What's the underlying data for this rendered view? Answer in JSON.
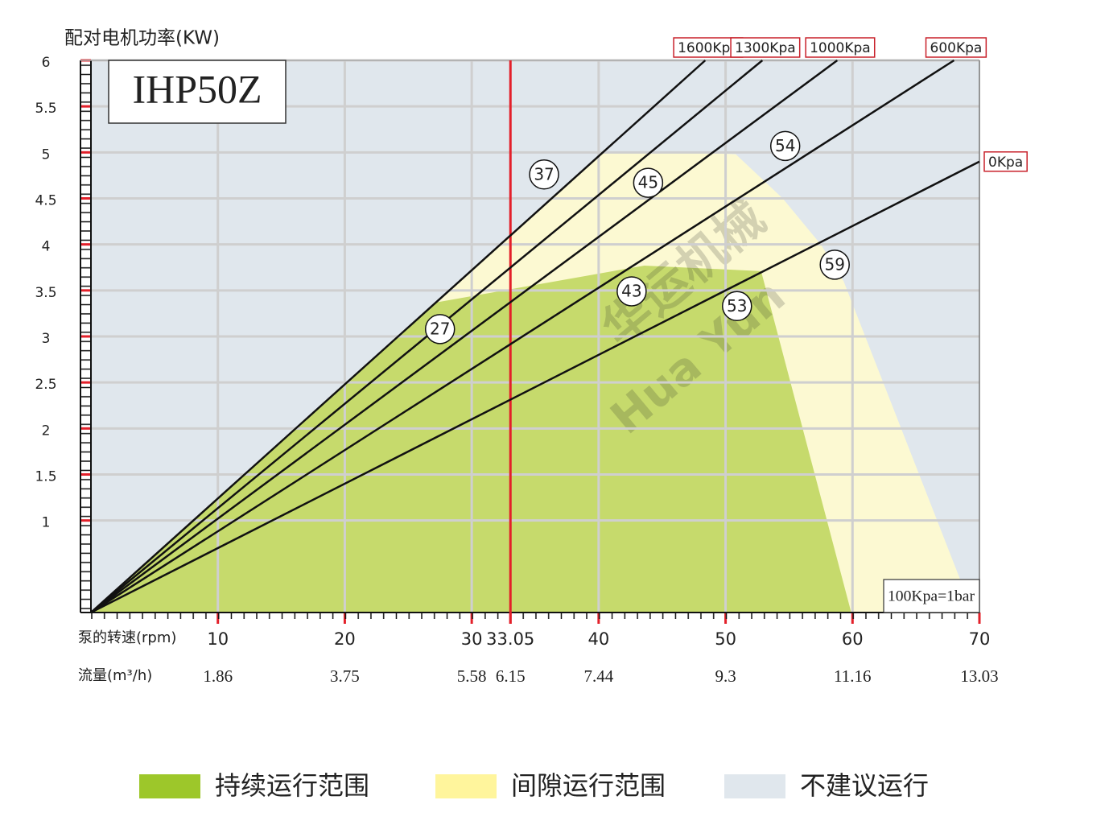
{
  "chart_data": {
    "type": "line",
    "title": "IHP50Z",
    "y_label": "配对电机功率(KW)",
    "x_label": "泵的转速(rpm)",
    "flow_label": "流量(m³/h)",
    "note": "100Kpa=1bar",
    "watermark": [
      "华运机械",
      "Hua Yun"
    ],
    "xlim": [
      0,
      70
    ],
    "ylim": [
      0,
      6
    ],
    "xticks": [
      10,
      20,
      30,
      33.05,
      40,
      50,
      60,
      70
    ],
    "flow_labels": [
      "1.86",
      "3.75",
      "5.58",
      "6.15",
      "7.44",
      "9.3",
      "11.16",
      "13.03"
    ],
    "yticks": [
      1,
      1.5,
      2,
      2.5,
      3,
      3.5,
      4,
      4.5,
      5,
      5.5,
      6
    ],
    "grid": true,
    "highlight": {
      "x": 33.05,
      "color": "#e3202a"
    },
    "series": [
      {
        "name": "1600Kpa",
        "color": "#111111",
        "x": [
          0,
          48.4
        ],
        "values": [
          0,
          6
        ]
      },
      {
        "name": "1300Kpa",
        "color": "#111111",
        "x": [
          0,
          52.9
        ],
        "values": [
          0,
          6
        ]
      },
      {
        "name": "1000Kpa",
        "color": "#111111",
        "x": [
          0,
          58.8
        ],
        "values": [
          0,
          6
        ]
      },
      {
        "name": "600Kpa",
        "color": "#111111",
        "x": [
          0,
          68
        ],
        "values": [
          0,
          6
        ]
      },
      {
        "name": "0Kpa",
        "color": "#111111",
        "x": [
          0,
          70
        ],
        "values": [
          0,
          4.9
        ]
      }
    ],
    "annotations": [
      {
        "label": "37",
        "x": 35.7,
        "y": 4.76
      },
      {
        "label": "45",
        "x": 43.9,
        "y": 4.67
      },
      {
        "label": "54",
        "x": 54.7,
        "y": 5.07
      },
      {
        "label": "27",
        "x": 27.5,
        "y": 3.08
      },
      {
        "label": "43",
        "x": 42.6,
        "y": 3.49
      },
      {
        "label": "59",
        "x": 58.6,
        "y": 3.78
      },
      {
        "label": "53",
        "x": 50.9,
        "y": 3.33
      }
    ],
    "regions": [
      {
        "name": "持续运行范围",
        "color": "#c6da6c",
        "x": [
          0,
          27.2,
          43.6,
          52.8,
          59.9
        ],
        "y": [
          0,
          3.37,
          3.77,
          3.71,
          0
        ]
      },
      {
        "name": "间隙运行范围",
        "color": "#fcf9d2",
        "x": [
          0,
          40.2,
          47,
          50.8,
          54.5,
          57.5,
          59.3,
          69.5
        ],
        "y": [
          0,
          4.99,
          5.0,
          4.98,
          4.5,
          4.0,
          3.6,
          0
        ]
      },
      {
        "name": "不建议运行",
        "color": "#e0e7ed"
      }
    ]
  }
}
